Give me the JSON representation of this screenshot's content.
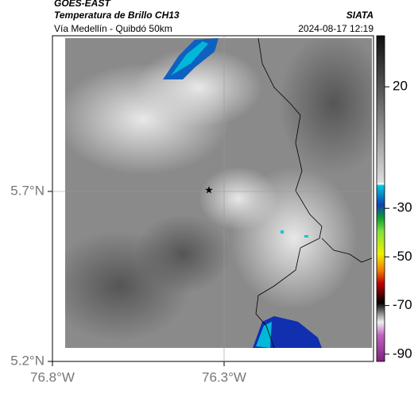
{
  "header": {
    "product": "GOES-EAST",
    "title": "Temperatura de Brillo CH13",
    "source": "SIATA",
    "subtitle": "Vía Medellín - Quibdó 50km",
    "timestamp": "2024-08-17 12:19"
  },
  "map": {
    "lat_ticks": [
      {
        "value": 5.7,
        "label": "5.7°N"
      },
      {
        "value": 5.2,
        "label": "5.2°N"
      }
    ],
    "lon_ticks": [
      {
        "value": -76.8,
        "label": "76.8°W"
      },
      {
        "value": -76.3,
        "label": "76.3°W"
      }
    ]
  },
  "colorbar": {
    "lim": [
      41,
      -93
    ],
    "ticks": [
      20,
      -30,
      -50,
      -70,
      -90
    ]
  }
}
